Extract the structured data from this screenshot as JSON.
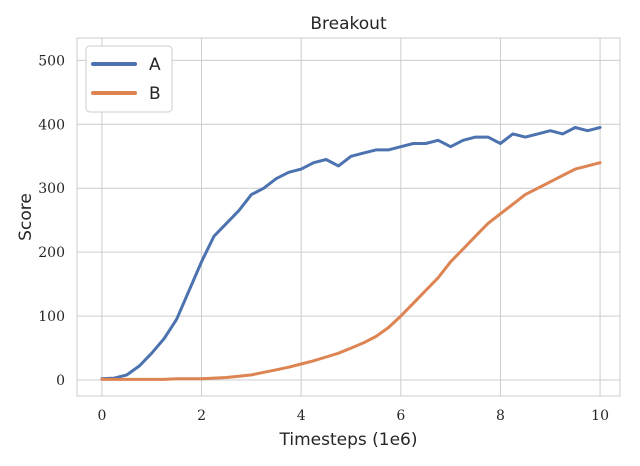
{
  "chart_data": {
    "type": "line",
    "title": "Breakout",
    "xlabel": "Timesteps (1e6)",
    "ylabel": "Score",
    "xlim": [
      -0.5,
      10.4
    ],
    "ylim": [
      -25,
      535
    ],
    "x_ticks": [
      0,
      2,
      4,
      6,
      8,
      10
    ],
    "x_tick_labels": [
      "0",
      "2",
      "4",
      "6",
      "8",
      "10"
    ],
    "y_ticks": [
      0,
      100,
      200,
      300,
      400,
      500
    ],
    "y_tick_labels": [
      "0",
      "100",
      "200",
      "300",
      "400",
      "500"
    ],
    "grid": true,
    "legend_position": "top-left",
    "series": [
      {
        "name": "A",
        "color": "#4c72b0",
        "x": [
          0,
          0.25,
          0.5,
          0.75,
          1.0,
          1.25,
          1.5,
          1.75,
          2.0,
          2.25,
          2.5,
          2.75,
          3.0,
          3.25,
          3.5,
          3.75,
          4.0,
          4.25,
          4.5,
          4.75,
          5.0,
          5.25,
          5.5,
          5.75,
          6.0,
          6.25,
          6.5,
          6.75,
          7.0,
          7.25,
          7.5,
          7.75,
          8.0,
          8.25,
          8.5,
          8.75,
          9.0,
          9.25,
          9.5,
          9.75,
          10.0
        ],
        "values": [
          2,
          3,
          8,
          22,
          42,
          65,
          95,
          140,
          185,
          225,
          245,
          265,
          290,
          300,
          315,
          325,
          330,
          340,
          345,
          335,
          350,
          355,
          360,
          360,
          365,
          370,
          370,
          375,
          365,
          375,
          380,
          380,
          370,
          385,
          380,
          385,
          390,
          385,
          395,
          390,
          395
        ]
      },
      {
        "name": "B",
        "color": "#dd8452",
        "x": [
          0,
          0.25,
          0.5,
          0.75,
          1.0,
          1.25,
          1.5,
          1.75,
          2.0,
          2.25,
          2.5,
          2.75,
          3.0,
          3.25,
          3.5,
          3.75,
          4.0,
          4.25,
          4.5,
          4.75,
          5.0,
          5.25,
          5.5,
          5.75,
          6.0,
          6.25,
          6.5,
          6.75,
          7.0,
          7.25,
          7.5,
          7.75,
          8.0,
          8.25,
          8.5,
          8.75,
          9.0,
          9.25,
          9.5,
          9.75,
          10.0
        ],
        "values": [
          1,
          1,
          1,
          1,
          1,
          1,
          2,
          2,
          2,
          3,
          4,
          6,
          8,
          12,
          16,
          20,
          25,
          30,
          36,
          42,
          50,
          58,
          68,
          82,
          100,
          120,
          140,
          160,
          185,
          205,
          225,
          245,
          260,
          275,
          290,
          300,
          310,
          320,
          330,
          335,
          340
        ]
      }
    ]
  }
}
